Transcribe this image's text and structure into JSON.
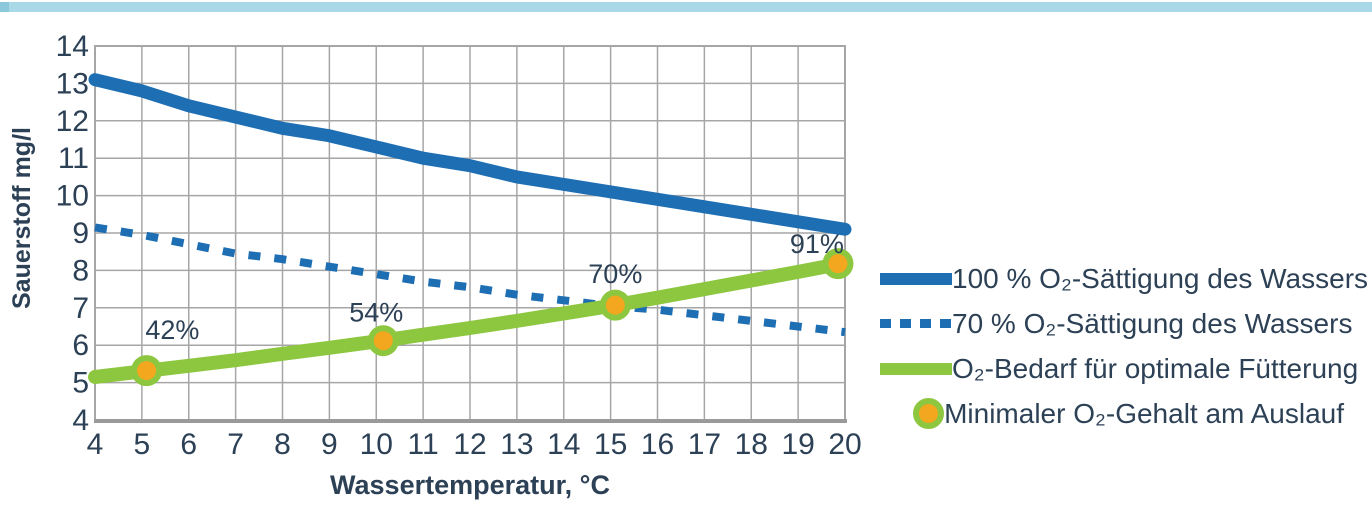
{
  "colors": {
    "text": "#2d4156",
    "grid": "#a6a6a6",
    "axis": "#9a9a9a",
    "accent_bar": "#a9d8e7",
    "accent_bar_cap": "#8cc8dc",
    "line_blue": "#1e6eb3",
    "line_green": "#8dc63f",
    "marker_orange": "#f2a71f"
  },
  "chart_data": {
    "type": "line",
    "title": "",
    "xlabel": "Wassertemperatur, °C",
    "ylabel": "Sauerstoff mg/l",
    "xlim": [
      4,
      20
    ],
    "ylim": [
      4,
      14
    ],
    "x_tick_step": 1,
    "y_tick_step": 1,
    "grid": true,
    "legend_position": "right",
    "x": [
      4,
      5,
      6,
      7,
      8,
      9,
      10,
      11,
      12,
      13,
      14,
      15,
      16,
      17,
      18,
      19,
      20
    ],
    "series": [
      {
        "id": "o2-saturation-100",
        "name": "100 % O₂-Sättigung des Wassers",
        "color": "#1e6eb3",
        "style": "solid",
        "width": 13,
        "values": [
          13.1,
          12.8,
          12.4,
          12.1,
          11.8,
          11.6,
          11.3,
          11.0,
          10.8,
          10.5,
          10.3,
          10.1,
          9.9,
          9.7,
          9.5,
          9.3,
          9.1
        ]
      },
      {
        "id": "o2-saturation-70",
        "name": "70 % O₂-Sättigung des Wassers",
        "color": "#1e6eb3",
        "style": "dashed",
        "width": 8,
        "values": [
          9.15,
          8.95,
          8.7,
          8.45,
          8.3,
          8.1,
          7.9,
          7.7,
          7.55,
          7.35,
          7.2,
          7.05,
          6.95,
          6.8,
          6.65,
          6.5,
          6.35
        ]
      },
      {
        "id": "o2-demand-feeding",
        "name": "O₂-Bedarf für optimale Fütterung",
        "color": "#8dc63f",
        "style": "solid",
        "width": 14,
        "values": [
          5.15,
          5.3,
          5.45,
          5.6,
          5.77,
          5.93,
          6.1,
          6.28,
          6.46,
          6.65,
          6.85,
          7.05,
          7.27,
          7.5,
          7.73,
          7.96,
          8.2
        ]
      }
    ],
    "markers": {
      "id": "min-o2-outlet",
      "name": "Minimaler O₂-Gehalt am Auslauf",
      "fill": "#f2a71f",
      "ring": "#8dc63f",
      "points": [
        {
          "x": 5.1,
          "y": 5.32,
          "label": "42%",
          "label_x": 5.65,
          "label_y": 6.42
        },
        {
          "x": 10.15,
          "y": 6.12,
          "label": "54%",
          "label_x": 10.0,
          "label_y": 6.88
        },
        {
          "x": 15.1,
          "y": 7.07,
          "label": "70%",
          "label_x": 15.1,
          "label_y": 7.92
        },
        {
          "x": 19.85,
          "y": 8.18,
          "label": "91%",
          "label_x": 19.4,
          "label_y": 8.72
        }
      ]
    }
  }
}
